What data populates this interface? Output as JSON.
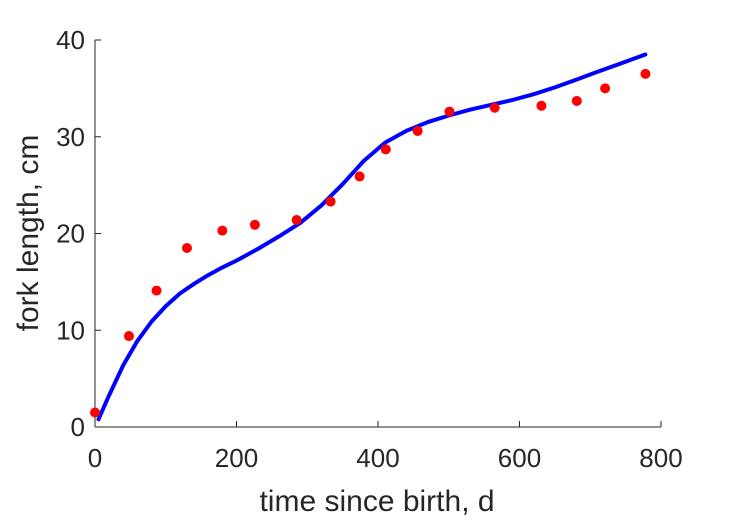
{
  "chart_data": {
    "type": "scatter",
    "xlabel": "time since birth, d",
    "ylabel": "fork length, cm",
    "xlim": [
      0,
      800
    ],
    "ylim": [
      0,
      40
    ],
    "x_ticks": [
      0,
      200,
      400,
      600,
      800
    ],
    "y_ticks": [
      0,
      10,
      20,
      30,
      40
    ],
    "x_tick_labels": [
      "0",
      "200",
      "400",
      "600",
      "800"
    ],
    "y_tick_labels": [
      "0",
      "10",
      "20",
      "30",
      "40"
    ],
    "grid": false,
    "series": [
      {
        "kind": "points",
        "color": "#ff0000",
        "x": [
          0,
          48,
          87,
          130,
          180,
          226,
          285,
          333,
          374,
          411,
          456,
          501,
          565,
          631,
          681,
          721,
          778
        ],
        "y": [
          1.5,
          9.4,
          14.1,
          18.5,
          20.3,
          20.9,
          21.4,
          23.3,
          25.9,
          28.7,
          30.6,
          32.6,
          33.0,
          33.2,
          33.7,
          35.0,
          36.5
        ]
      },
      {
        "kind": "line",
        "color": "#0000ff",
        "x": [
          5,
          20,
          40,
          60,
          80,
          100,
          120,
          140,
          160,
          180,
          200,
          230,
          260,
          290,
          320,
          350,
          380,
          410,
          440,
          470,
          500,
          530,
          560,
          590,
          620,
          650,
          680,
          710,
          740,
          778
        ],
        "y": [
          0.8,
          3.3,
          6.4,
          8.9,
          10.9,
          12.5,
          13.8,
          14.8,
          15.7,
          16.5,
          17.2,
          18.4,
          19.7,
          21.1,
          22.9,
          25.1,
          27.5,
          29.4,
          30.6,
          31.5,
          32.2,
          32.8,
          33.3,
          33.8,
          34.4,
          35.1,
          35.9,
          36.7,
          37.5,
          38.5
        ]
      }
    ]
  }
}
